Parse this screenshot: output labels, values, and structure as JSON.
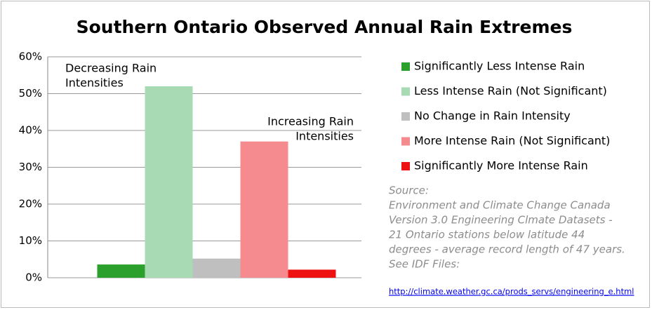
{
  "chart_data": {
    "type": "bar",
    "title": "Southern Ontario Observed Annual Rain Extremes",
    "series": [
      {
        "name": "Significantly Less Intense Rain",
        "color": "#2ca02c",
        "values": [
          3.6
        ]
      },
      {
        "name": "Less Intense Rain (Not Significant)",
        "color": "#a8dbb4",
        "values": [
          52
        ]
      },
      {
        "name": "No Change in Rain Intensity",
        "color": "#bfbfbf",
        "values": [
          5.2
        ]
      },
      {
        "name": "More Intense Rain (Not Significant)",
        "color": "#f58b8e",
        "values": [
          37
        ]
      },
      {
        "name": "Significantly More Intense Rain",
        "color": "#ee1111",
        "values": [
          2.2
        ]
      }
    ],
    "ylim": [
      0,
      60
    ],
    "yticks": [
      {
        "value": 0,
        "label": "0%"
      },
      {
        "value": 10,
        "label": "10%"
      },
      {
        "value": 20,
        "label": "20%"
      },
      {
        "value": 30,
        "label": "30%"
      },
      {
        "value": 40,
        "label": "40%"
      },
      {
        "value": 50,
        "label": "50%"
      },
      {
        "value": 60,
        "label": "60%"
      }
    ],
    "grid": true,
    "legend": "right",
    "annotations": [
      {
        "lines": [
          "Decreasing Rain",
          "Intensities"
        ]
      },
      {
        "lines": [
          "Increasing Rain",
          "Intensities"
        ]
      }
    ],
    "source": {
      "lines": [
        "Source:",
        "Environment and Climate Change Canada",
        "Version 3.0 Engineering Clmate Datasets -",
        "21 Ontario stations below latitude 44",
        "degrees - average record length of 47 years.",
        "See IDF Files:"
      ],
      "link": "http://climate.weather.gc.ca/prods_servs/engineering_e.html"
    }
  }
}
